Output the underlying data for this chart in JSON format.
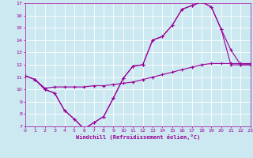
{
  "xlabel": "Windchill (Refroidissement éolien,°C)",
  "background_color": "#cce8f0",
  "grid_color": "#ffffff",
  "line_color": "#990099",
  "xlim": [
    0,
    23
  ],
  "ylim": [
    7,
    17
  ],
  "xticks": [
    0,
    1,
    2,
    3,
    4,
    5,
    6,
    7,
    8,
    9,
    10,
    11,
    12,
    13,
    14,
    15,
    16,
    17,
    18,
    19,
    20,
    21,
    22,
    23
  ],
  "yticks": [
    7,
    8,
    9,
    10,
    11,
    12,
    13,
    14,
    15,
    16,
    17
  ],
  "series1_x": [
    0,
    1,
    2,
    3,
    4,
    5,
    6,
    7,
    8,
    9,
    10,
    11,
    12,
    13,
    14,
    15,
    16,
    17,
    18,
    19,
    20,
    21,
    22,
    23
  ],
  "series1_y": [
    11.1,
    10.8,
    10.0,
    9.7,
    8.3,
    7.6,
    6.8,
    7.3,
    7.8,
    9.3,
    10.9,
    11.9,
    12.0,
    14.0,
    14.3,
    15.2,
    16.5,
    16.8,
    17.1,
    16.7,
    14.9,
    13.2,
    12.0,
    12.0
  ],
  "series2_x": [
    0,
    1,
    2,
    3,
    4,
    5,
    6,
    7,
    8,
    9,
    10,
    11,
    12,
    13,
    14,
    15,
    16,
    17,
    18,
    19,
    20,
    21,
    22,
    23
  ],
  "series2_y": [
    11.1,
    10.8,
    10.1,
    10.2,
    10.2,
    10.2,
    10.2,
    10.3,
    10.3,
    10.4,
    10.5,
    10.6,
    10.8,
    11.0,
    11.2,
    11.4,
    11.6,
    11.8,
    12.0,
    12.1,
    12.1,
    12.1,
    12.1,
    12.1
  ],
  "series3_x": [
    0,
    1,
    2,
    3,
    4,
    5,
    6,
    7,
    8,
    9,
    10,
    11,
    12,
    13,
    14,
    15,
    16,
    17,
    18,
    19,
    20,
    21,
    22,
    23
  ],
  "series3_y": [
    11.1,
    10.8,
    10.0,
    9.7,
    8.3,
    7.6,
    6.8,
    7.3,
    7.8,
    9.3,
    10.9,
    11.9,
    12.0,
    14.0,
    14.3,
    15.2,
    16.5,
    16.8,
    17.1,
    16.7,
    14.9,
    12.0,
    12.0,
    12.0
  ]
}
